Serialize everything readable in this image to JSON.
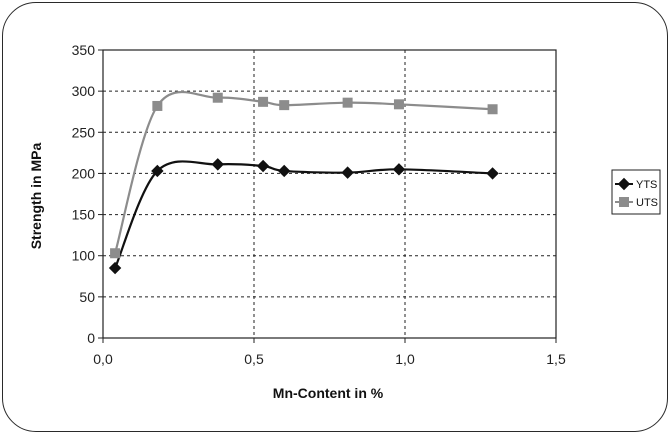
{
  "chart_data": {
    "type": "line",
    "title": "",
    "xlabel": "Mn-Content in %",
    "ylabel": "Strength in MPa",
    "xlim": [
      0,
      1.5
    ],
    "ylim": [
      0,
      350
    ],
    "xticks": [
      0,
      0.5,
      1.0,
      1.5
    ],
    "xtick_labels": [
      "0,0",
      "0,5",
      "1,0",
      "1,5"
    ],
    "yticks": [
      0,
      50,
      100,
      150,
      200,
      250,
      300,
      350
    ],
    "ytick_labels": [
      "0",
      "50",
      "100",
      "150",
      "200",
      "250",
      "300",
      "350"
    ],
    "grid": "dashed",
    "legend_position": "right",
    "series": [
      {
        "name": "YTS",
        "marker": "diamond",
        "color": "#111111",
        "x": [
          0.04,
          0.18,
          0.38,
          0.53,
          0.6,
          0.81,
          0.98,
          1.29
        ],
        "y": [
          85,
          203,
          211,
          209,
          203,
          201,
          205,
          200
        ]
      },
      {
        "name": "UTS",
        "marker": "square",
        "color": "#8c8c8c",
        "x": [
          0.04,
          0.18,
          0.38,
          0.53,
          0.6,
          0.81,
          0.98,
          1.29
        ],
        "y": [
          103,
          282,
          292,
          287,
          283,
          286,
          284,
          278
        ]
      }
    ]
  }
}
